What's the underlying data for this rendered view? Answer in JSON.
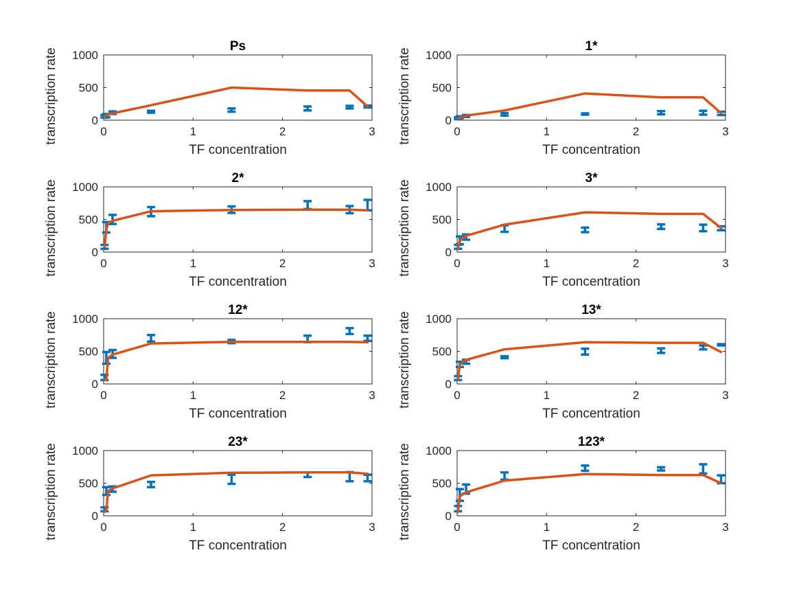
{
  "colors": {
    "data": "#0072BD",
    "model": "#D95319",
    "axis": "#262626",
    "background": "#ffffff"
  },
  "chart_data": [
    {
      "type": "line",
      "title": "Ps",
      "xlabel": "TF concentration",
      "ylabel": "transcription rate",
      "xlim": [
        0,
        3
      ],
      "ylim": [
        0,
        1000
      ],
      "xticks": [
        "0",
        "1",
        "2",
        "3"
      ],
      "yticks": [
        "0",
        "500",
        "1000"
      ],
      "grid": false,
      "series": [
        {
          "kind": "errorbar",
          "x": [
            0.01,
            0.03,
            0.1,
            0.53,
            1.43,
            2.28,
            2.75,
            2.95
          ],
          "y": [
            60,
            70,
            115,
            130,
            155,
            180,
            200,
            210
          ],
          "err": [
            20,
            25,
            20,
            15,
            25,
            30,
            20,
            15
          ]
        },
        {
          "kind": "line",
          "x": [
            0.01,
            0.03,
            0.1,
            0.53,
            1.43,
            2.28,
            2.75,
            2.95
          ],
          "y": [
            50,
            80,
            105,
            230,
            500,
            455,
            455,
            210
          ]
        }
      ]
    },
    {
      "type": "line",
      "title": "1*",
      "xlabel": "TF concentration",
      "ylabel": "transcription rate",
      "xlim": [
        0,
        3
      ],
      "ylim": [
        0,
        1000
      ],
      "xticks": [
        "0",
        "1",
        "2",
        "3"
      ],
      "yticks": [
        "0",
        "500",
        "1000"
      ],
      "grid": false,
      "series": [
        {
          "kind": "errorbar",
          "x": [
            0.01,
            0.03,
            0.1,
            0.53,
            1.43,
            2.28,
            2.75,
            2.95
          ],
          "y": [
            30,
            45,
            65,
            90,
            95,
            115,
            115,
            105
          ],
          "err": [
            15,
            15,
            15,
            20,
            10,
            25,
            30,
            25
          ]
        },
        {
          "kind": "line",
          "x": [
            0.01,
            0.03,
            0.1,
            0.53,
            1.43,
            2.28,
            2.75,
            2.95
          ],
          "y": [
            25,
            35,
            70,
            150,
            410,
            350,
            350,
            110
          ]
        }
      ]
    },
    {
      "type": "line",
      "title": "2*",
      "xlabel": "TF concentration",
      "ylabel": "transcription rate",
      "xlim": [
        0,
        3
      ],
      "ylim": [
        0,
        1000
      ],
      "xticks": [
        "0",
        "1",
        "2",
        "3"
      ],
      "yticks": [
        "0",
        "500",
        "1000"
      ],
      "grid": false,
      "series": [
        {
          "kind": "errorbar",
          "x": [
            0.01,
            0.03,
            0.1,
            0.53,
            1.43,
            2.28,
            2.75,
            2.95
          ],
          "y": [
            80,
            380,
            500,
            620,
            650,
            720,
            650,
            720
          ],
          "err": [
            30,
            80,
            70,
            70,
            50,
            60,
            55,
            80
          ]
        },
        {
          "kind": "line",
          "x": [
            0.01,
            0.03,
            0.05,
            0.1,
            0.53,
            1.43,
            2.28,
            2.75,
            2.95
          ],
          "y": [
            80,
            350,
            440,
            480,
            625,
            645,
            650,
            650,
            640
          ]
        }
      ]
    },
    {
      "type": "line",
      "title": "3*",
      "xlabel": "TF concentration",
      "ylabel": "transcription rate",
      "xlim": [
        0,
        3
      ],
      "ylim": [
        0,
        1000
      ],
      "xticks": [
        "0",
        "1",
        "2",
        "3"
      ],
      "yticks": [
        "0",
        "500",
        "1000"
      ],
      "grid": false,
      "series": [
        {
          "kind": "errorbar",
          "x": [
            0.01,
            0.03,
            0.1,
            0.53,
            1.43,
            2.28,
            2.75,
            2.95
          ],
          "y": [
            80,
            180,
            230,
            360,
            340,
            390,
            370,
            365
          ],
          "err": [
            30,
            60,
            40,
            50,
            35,
            35,
            50,
            30
          ]
        },
        {
          "kind": "line",
          "x": [
            0.01,
            0.03,
            0.1,
            0.53,
            1.43,
            2.28,
            2.75,
            2.95
          ],
          "y": [
            60,
            180,
            250,
            420,
            610,
            585,
            585,
            370
          ]
        }
      ]
    },
    {
      "type": "line",
      "title": "12*",
      "xlabel": "TF concentration",
      "ylabel": "transcription rate",
      "xlim": [
        0,
        3
      ],
      "ylim": [
        0,
        1000
      ],
      "xticks": [
        "0",
        "1",
        "2",
        "3"
      ],
      "yticks": [
        "0",
        "500",
        "1000"
      ],
      "grid": false,
      "series": [
        {
          "kind": "errorbar",
          "x": [
            0.01,
            0.03,
            0.1,
            0.53,
            1.43,
            2.28,
            2.75,
            2.95
          ],
          "y": [
            100,
            400,
            460,
            700,
            650,
            690,
            810,
            700
          ],
          "err": [
            40,
            90,
            60,
            50,
            25,
            50,
            45,
            40
          ]
        },
        {
          "kind": "line",
          "x": [
            0.01,
            0.03,
            0.05,
            0.1,
            0.53,
            1.43,
            2.28,
            2.75,
            2.95
          ],
          "y": [
            70,
            60,
            400,
            450,
            620,
            645,
            645,
            645,
            640
          ]
        }
      ]
    },
    {
      "type": "line",
      "title": "13*",
      "xlabel": "TF concentration",
      "ylabel": "transcription rate",
      "xlim": [
        0,
        3
      ],
      "ylim": [
        0,
        1000
      ],
      "xticks": [
        "0",
        "1",
        "2",
        "3"
      ],
      "yticks": [
        "0",
        "500",
        "1000"
      ],
      "grid": false,
      "series": [
        {
          "kind": "errorbar",
          "x": [
            0.01,
            0.03,
            0.1,
            0.53,
            1.43,
            2.28,
            2.75,
            2.95
          ],
          "y": [
            90,
            300,
            340,
            410,
            495,
            510,
            560,
            600
          ],
          "err": [
            30,
            40,
            30,
            15,
            45,
            35,
            30,
            10
          ]
        },
        {
          "kind": "line",
          "x": [
            0.01,
            0.03,
            0.1,
            0.53,
            1.43,
            2.28,
            2.75,
            2.95
          ],
          "y": [
            70,
            300,
            370,
            530,
            640,
            630,
            630,
            490
          ]
        }
      ]
    },
    {
      "type": "line",
      "title": "23*",
      "xlabel": "TF concentration",
      "ylabel": "transcription rate",
      "xlim": [
        0,
        3
      ],
      "ylim": [
        0,
        1000
      ],
      "xticks": [
        "0",
        "1",
        "2",
        "3"
      ],
      "yticks": [
        "0",
        "500",
        "1000"
      ],
      "grid": false,
      "series": [
        {
          "kind": "errorbar",
          "x": [
            0.01,
            0.03,
            0.1,
            0.53,
            1.43,
            2.28,
            2.75,
            2.95
          ],
          "y": [
            100,
            380,
            410,
            480,
            560,
            630,
            600,
            580
          ],
          "err": [
            30,
            60,
            40,
            40,
            70,
            35,
            70,
            50
          ]
        },
        {
          "kind": "line",
          "x": [
            0.01,
            0.03,
            0.05,
            0.1,
            0.53,
            1.43,
            2.28,
            2.75,
            2.95
          ],
          "y": [
            60,
            90,
            380,
            420,
            620,
            660,
            665,
            665,
            645
          ]
        }
      ]
    },
    {
      "type": "line",
      "title": "123*",
      "xlabel": "TF concentration",
      "ylabel": "transcription rate",
      "xlim": [
        0,
        3
      ],
      "ylim": [
        0,
        1000
      ],
      "xticks": [
        "0",
        "1",
        "2",
        "3"
      ],
      "yticks": [
        "0",
        "500",
        "1000"
      ],
      "grid": false,
      "series": [
        {
          "kind": "errorbar",
          "x": [
            0.01,
            0.03,
            0.1,
            0.53,
            1.43,
            2.28,
            2.75,
            2.95
          ],
          "y": [
            110,
            320,
            410,
            610,
            730,
            720,
            720,
            560
          ],
          "err": [
            40,
            90,
            70,
            55,
            40,
            25,
            70,
            60
          ]
        },
        {
          "kind": "line",
          "x": [
            0.01,
            0.03,
            0.1,
            0.53,
            1.43,
            2.28,
            2.75,
            2.95
          ],
          "y": [
            60,
            300,
            360,
            540,
            640,
            625,
            625,
            500
          ]
        }
      ]
    }
  ]
}
